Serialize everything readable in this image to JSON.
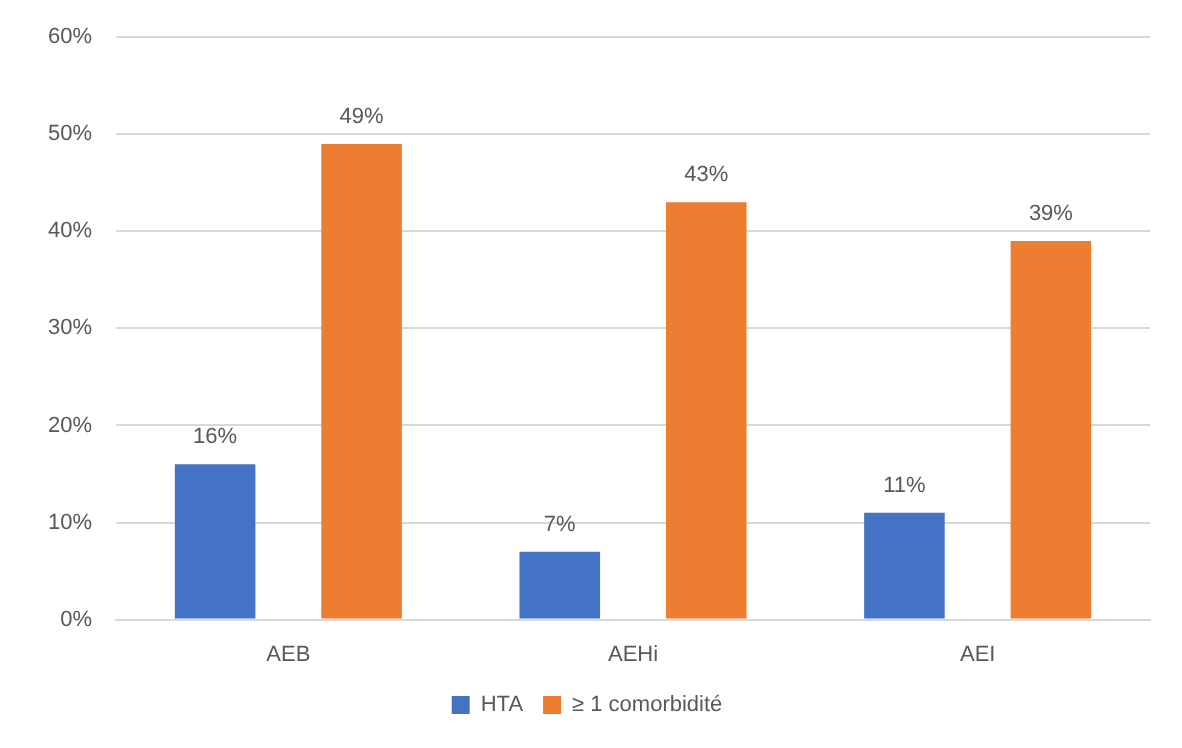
{
  "chart_data": {
    "type": "bar",
    "categories": [
      "AEB",
      "AEHi",
      "AEI"
    ],
    "series": [
      {
        "name": "HTA",
        "color": "#4472c4",
        "values": [
          16,
          7,
          11
        ],
        "value_labels": [
          "16%",
          "7%",
          "11%"
        ]
      },
      {
        "name": "≥ 1 comorbidité",
        "color": "#ed7d31",
        "values": [
          49,
          43,
          39
        ],
        "value_labels": [
          "49%",
          "43%",
          "39%"
        ]
      }
    ],
    "ylim": [
      0,
      60
    ],
    "yticks": [
      {
        "value": 0,
        "label": "0%"
      },
      {
        "value": 10,
        "label": "10%"
      },
      {
        "value": 20,
        "label": "20%"
      },
      {
        "value": 30,
        "label": "30%"
      },
      {
        "value": 40,
        "label": "40%"
      },
      {
        "value": 50,
        "label": "50%"
      },
      {
        "value": 60,
        "label": "60%"
      }
    ],
    "grid": "y",
    "legend": "bottom"
  }
}
